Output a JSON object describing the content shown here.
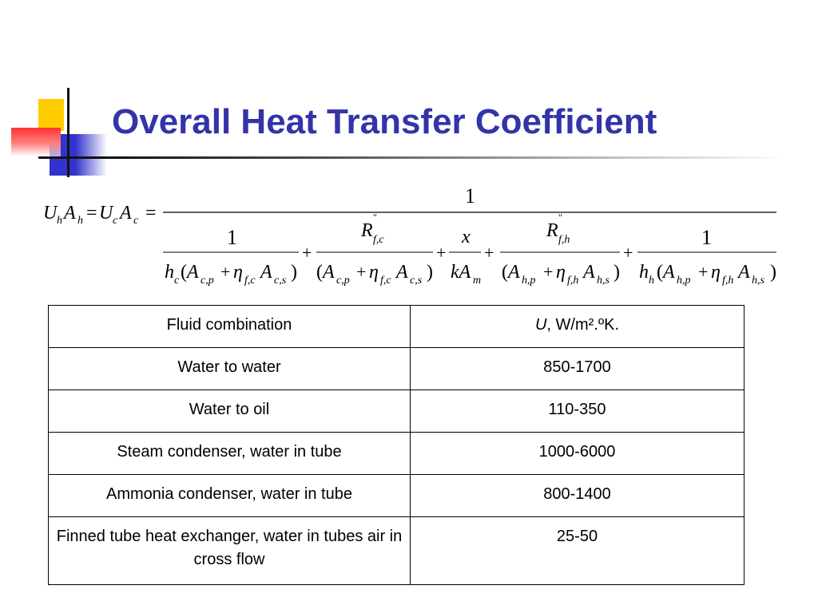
{
  "slide": {
    "title": "Overall Heat Transfer Coefficient"
  },
  "table": {
    "headers": {
      "col1": "Fluid combination",
      "col2_symbol": "U",
      "col2_unit": ", W/m².ºK."
    },
    "rows": [
      {
        "fluid": "Water to water",
        "value": "850-1700"
      },
      {
        "fluid": "Water to oil",
        "value": "110-350"
      },
      {
        "fluid": "Steam condenser, water in tube",
        "value": "1000-6000"
      },
      {
        "fluid": "Ammonia condenser, water in tube",
        "value": "800-1400"
      },
      {
        "fluid": "Finned tube heat exchanger, water in tubes air in cross flow",
        "value": "25-50"
      }
    ]
  }
}
